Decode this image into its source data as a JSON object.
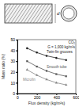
{
  "diagram": {
    "label": "d"
  },
  "chart_data": {
    "type": "line",
    "x_label": "Flux density (kg/m²s)",
    "y_label": "Mass ratio (%)",
    "annotations": [
      "CO₂",
      "G = 1,000 kg/m²s"
    ],
    "x": [
      100,
      200,
      300,
      400,
      500
    ],
    "xlim": [
      0,
      600
    ],
    "xticks": [
      0,
      200,
      400,
      600
    ],
    "ylim": [
      0,
      50
    ],
    "yticks": [
      0,
      10,
      20,
      30,
      40,
      50
    ],
    "series": [
      {
        "name": "Twin-fin grooves",
        "color": "#222222",
        "marker": "circle",
        "values": [
          42,
          38,
          35,
          33,
          31
        ]
      },
      {
        "name": "Smooth tube",
        "color": "#555555",
        "marker": "square",
        "values": [
          30,
          25,
          21,
          18,
          16
        ]
      },
      {
        "name": "Microfin",
        "color": "#888888",
        "marker": "triangle",
        "values": [
          22,
          17,
          13,
          10,
          8
        ]
      }
    ]
  }
}
